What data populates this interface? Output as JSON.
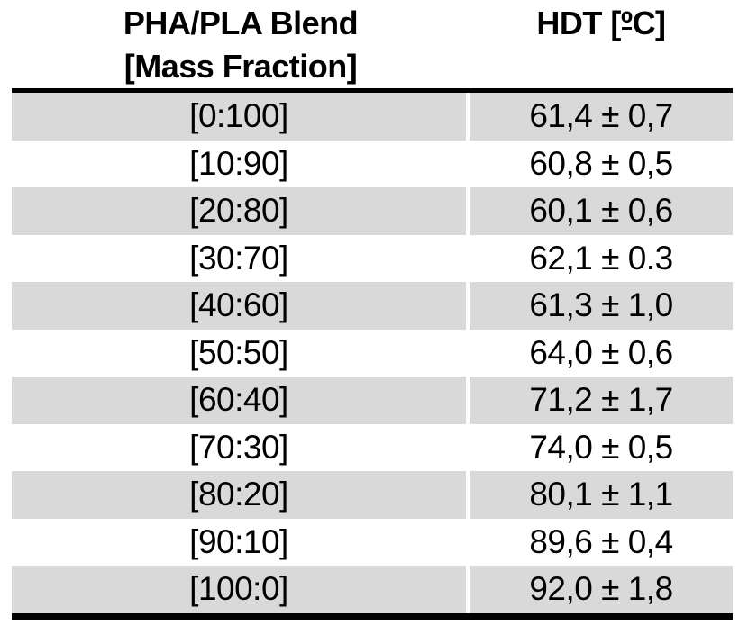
{
  "table": {
    "header": {
      "blend_line1": "PHA/PLA Blend",
      "blend_line2": "[Mass Fraction]",
      "hdt_prefix": "HDT [",
      "hdt_degree": "º",
      "hdt_suffix": "C]"
    },
    "rows": [
      {
        "blend": "[0:100]",
        "hdt": "61,4 ± 0,7"
      },
      {
        "blend": "[10:90]",
        "hdt": "60,8 ± 0,5"
      },
      {
        "blend": "[20:80]",
        "hdt": "60,1 ± 0,6"
      },
      {
        "blend": "[30:70]",
        "hdt": "62,1 ± 0.3"
      },
      {
        "blend": "[40:60]",
        "hdt": "61,3 ± 1,0"
      },
      {
        "blend": "[50:50]",
        "hdt": "64,0 ± 0,6"
      },
      {
        "blend": "[60:40]",
        "hdt": "71,2 ± 1,7"
      },
      {
        "blend": "[70:30]",
        "hdt": "74,0 ± 0,5"
      },
      {
        "blend": "[80:20]",
        "hdt": "80,1 ± 1,1"
      },
      {
        "blend": "[90:10]",
        "hdt": "89,6 ± 0,4"
      },
      {
        "blend": "[100:0]",
        "hdt": "92,0 ± 1,8"
      }
    ],
    "colors": {
      "row_shade": "#d9d9d9",
      "rule": "#000000",
      "text": "#000000",
      "background": "#ffffff"
    }
  },
  "chart_data": {
    "type": "table",
    "columns": [
      "PHA/PLA Blend [Mass Fraction]",
      "HDT [ºC]"
    ],
    "rows": [
      [
        "[0:100]",
        "61,4 ± 0,7"
      ],
      [
        "[10:90]",
        "60,8 ± 0,5"
      ],
      [
        "[20:80]",
        "60,1 ± 0,6"
      ],
      [
        "[30:70]",
        "62,1 ± 0.3"
      ],
      [
        "[40:60]",
        "61,3 ± 1,0"
      ],
      [
        "[50:50]",
        "64,0 ± 0,6"
      ],
      [
        "[60:40]",
        "71,2 ± 1,7"
      ],
      [
        "[70:30]",
        "74,0 ± 0,5"
      ],
      [
        "[80:20]",
        "80,1 ± 1,1"
      ],
      [
        "[90:10]",
        "89,6 ± 0,4"
      ],
      [
        "[100:0]",
        "92,0 ± 1,8"
      ]
    ],
    "hdt_values": [
      61.4,
      60.8,
      60.1,
      62.1,
      61.3,
      64.0,
      71.2,
      74.0,
      80.1,
      89.6,
      92.0
    ],
    "hdt_errors": [
      0.7,
      0.5,
      0.6,
      0.3,
      1.0,
      0.6,
      1.7,
      0.5,
      1.1,
      0.4,
      1.8
    ]
  }
}
